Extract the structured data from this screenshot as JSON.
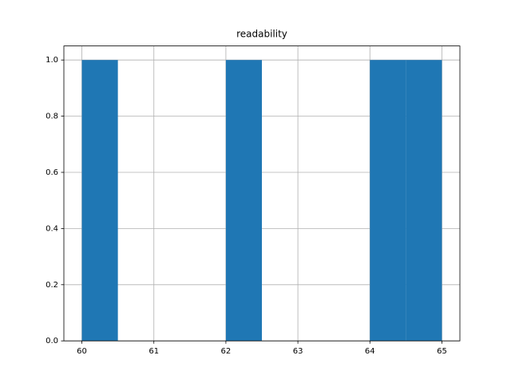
{
  "chart_data": {
    "type": "histogram",
    "title": "readability",
    "bins": [
      60,
      60.5,
      61,
      61.5,
      62,
      62.5,
      63,
      63.5,
      64,
      64.5,
      65
    ],
    "counts": [
      1,
      0,
      0,
      0,
      1,
      0,
      0,
      0,
      1,
      1
    ],
    "color": "#1f77b4",
    "xlim": [
      59.75,
      65.25
    ],
    "xticks": [
      60,
      61,
      62,
      63,
      64,
      65
    ],
    "ylim": [
      0,
      1.05
    ],
    "yticks": [
      {
        "value": 0,
        "label": "0.0"
      },
      0.2,
      0.4,
      0.6,
      0.8,
      {
        "value": 1,
        "label": "1.0"
      }
    ],
    "grid": true
  }
}
